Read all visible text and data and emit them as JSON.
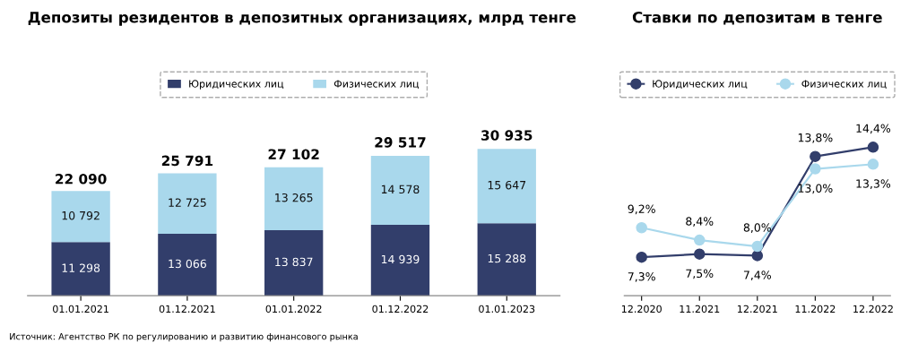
{
  "chart_data": [
    {
      "type": "bar",
      "stacked": true,
      "title": "Депозиты резидентов в депозитных организациях, млрд тенге",
      "categories": [
        "01.01.2021",
        "01.12.2021",
        "01.01.2022",
        "01.12.2022",
        "01.01.2023"
      ],
      "series": [
        {
          "name": "Юридических лиц",
          "color": "#323e6b",
          "values": [
            11298,
            13066,
            13837,
            14939,
            15288
          ],
          "value_labels": [
            "11 298",
            "13 066",
            "13 837",
            "14 939",
            "15 288"
          ]
        },
        {
          "name": "Физических лиц",
          "color": "#a9d8ec",
          "values": [
            10792,
            12725,
            13265,
            14578,
            15647
          ],
          "value_labels": [
            "10 792",
            "12 725",
            "13 265",
            "14 578",
            "15 647"
          ]
        }
      ],
      "totals": [
        "22 090",
        "25 791",
        "27 102",
        "29 517",
        "30 935"
      ],
      "legend": "top",
      "grid": false,
      "tick_labels": "x",
      "annotations": [
        "Источник: Агентство РК по регулированию и развитию финансового рынка"
      ]
    },
    {
      "type": "line",
      "title": "Ставки по депозитам в тенге",
      "categories": [
        "12.2020",
        "11.2021",
        "12.2021",
        "11.2022",
        "12.2022"
      ],
      "series": [
        {
          "name": "Юридических лиц",
          "color": "#323e6b",
          "values": [
            7.3,
            7.5,
            7.4,
            13.8,
            14.4
          ],
          "value_labels": [
            "7,3%",
            "7,5%",
            "7,4%",
            "13,8%",
            "14,4%"
          ]
        },
        {
          "name": "Физических лиц",
          "color": "#a9d8ec",
          "values": [
            9.2,
            8.4,
            8.0,
            13.0,
            13.3
          ],
          "value_labels": [
            "9,2%",
            "8,4%",
            "8,0%",
            "13,0%",
            "13,3%"
          ]
        }
      ],
      "legend": "top",
      "grid": false,
      "tick_labels": "x",
      "marker": "circle",
      "line_style": "solid"
    }
  ]
}
